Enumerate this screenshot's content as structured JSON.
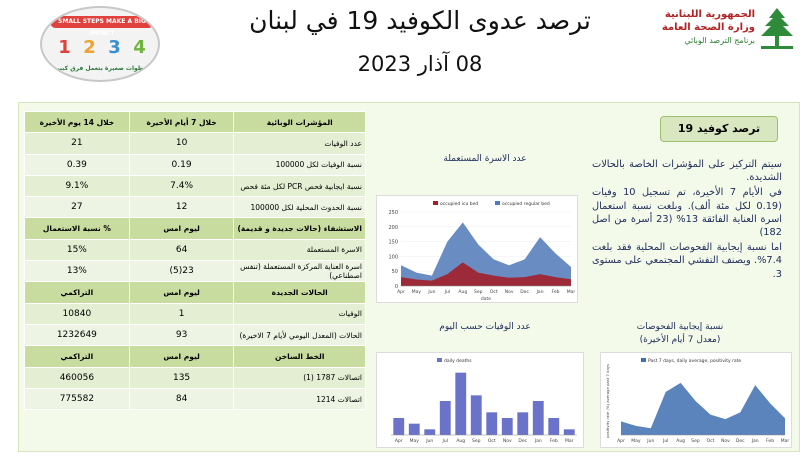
{
  "header": {
    "title": "ترصد عدوى الكوفيد 19 في لبنان",
    "date": "08 آذار 2023",
    "badge": {
      "top": "SMALL STEPS MAKE A BIG IMPACT",
      "numbers": [
        "1",
        "2",
        "3",
        "4"
      ],
      "bottom": "خطوات صغيرة بتعمل فرق كبير"
    },
    "ministry": {
      "line1": "الجمهورية اللبنانية",
      "line2": "وزارة الصحة العامة",
      "line3": "برنامج الترصد الوبائي"
    }
  },
  "table": {
    "header": [
      "المؤشرات الوبائية",
      "خلال 7 أيام الأخيرة",
      "خلال 14 يوم الأخيرة"
    ],
    "indicators": [
      {
        "label": "عدد الوفيات",
        "v7": "10",
        "v14": "21"
      },
      {
        "label": "نسبة الوفيات لكل 100000",
        "v7": "0.19",
        "v14": "0.39"
      },
      {
        "label": "نسبة ايجابية فحص PCR لكل مئة فحص",
        "v7": "7.4%",
        "v14": "9.1%"
      },
      {
        "label": "نسبة الحدوث المحلية لكل 100000",
        "v7": "12",
        "v14": "27"
      }
    ],
    "hosp_header": [
      "الاستشفاء (حالات جديدة و قديمة)",
      "ليوم امس",
      "% نسبة الاستعمال"
    ],
    "hosp": [
      {
        "label": "الاسرة المستعملة",
        "today": "64",
        "pct": "15%"
      },
      {
        "label": "اسرة العناية المركزة المستعملة (تنفس اصطناعي)",
        "today": "23(5)",
        "pct": "13%"
      }
    ],
    "new_header": [
      "الحالات الجديدة",
      "ليوم امس",
      "التراكمي"
    ],
    "new_cases": [
      {
        "label": "الوفيات",
        "today": "1",
        "cum": "10840"
      },
      {
        "label": "الحالات (المعدل اليومي لأيام 7 الاخيرة)",
        "today": "93",
        "cum": "1232649"
      }
    ],
    "hotline_header": [
      "الخط الساخن",
      "ليوم امس",
      "التراكمي"
    ],
    "hotline": [
      {
        "label": "اتصالات 1787 (1)",
        "today": "135",
        "cum": "460056"
      },
      {
        "label": "اتصالات 1214",
        "today": "84",
        "cum": "775582"
      }
    ]
  },
  "covid": {
    "heading": "ترصد كوفيد 19",
    "paragraphs": [
      "سيتم التركيز على المؤشرات الخاصة بالحالات الشديدة.",
      "في الأيام 7 الأخيرة، تم تسجيل 10 وفيات (0.19 لكل مئة ألف). وبلغت نسبة استعمال اسرة العناية الفائقة 13% (23 أسرة من اصل 182)",
      "اما نسبة إيجابية الفحوصات المحلية فقد بلغت 7.4%. ويصنف التفشي المجتمعي على مستوى 3."
    ]
  },
  "charts": {
    "beds": {
      "title": "عدد الاسرة المستعملة",
      "legend": [
        "occupied icu bed",
        "occupied regular bed"
      ],
      "xlabel": "date",
      "months": [
        "Apr",
        "May",
        "Jun",
        "Jul",
        "Aug",
        "Sep",
        "Oct",
        "Nov",
        "Dec",
        "Jan",
        "Feb",
        "Mar"
      ],
      "yticks": [
        "250",
        "200",
        "150",
        "100",
        "50",
        "0"
      ],
      "colors": {
        "icu": "#a31f2a",
        "regular": "#4f79b8"
      }
    },
    "deaths": {
      "title": "عدد الوفيات حسب اليوم",
      "legend": [
        "daily deaths"
      ],
      "color": "#6b72c9"
    },
    "positivity": {
      "title": "نسبة إيجابية الفحوصات",
      "subtitle": "(معدل 7 أيام الأخيرة)",
      "legend": [
        "Past 7 days, daily average, positivity rate"
      ],
      "ylabel": "positivity rate (%) average past 7 days",
      "color": "#3f6fb0"
    }
  },
  "chart_data": [
    {
      "type": "area",
      "title": "عدد الاسرة المستعملة",
      "x": [
        "Apr",
        "May",
        "Jun",
        "Jul",
        "Aug",
        "Sep",
        "Oct",
        "Nov",
        "Dec",
        "Jan",
        "Feb",
        "Mar"
      ],
      "series": [
        {
          "name": "occupied icu bed",
          "values": [
            30,
            22,
            18,
            40,
            80,
            45,
            35,
            28,
            30,
            40,
            30,
            23
          ]
        },
        {
          "name": "occupied regular bed",
          "values": [
            70,
            45,
            35,
            150,
            215,
            140,
            90,
            70,
            90,
            165,
            110,
            64
          ]
        }
      ],
      "ylim": [
        0,
        250
      ]
    },
    {
      "type": "bar",
      "title": "عدد الوفيات حسب اليوم",
      "x": [
        "Apr",
        "May",
        "Jun",
        "Jul",
        "Aug",
        "Sep",
        "Oct",
        "Nov",
        "Dec",
        "Jan",
        "Feb",
        "Mar"
      ],
      "series": [
        {
          "name": "daily deaths",
          "values": [
            3,
            2,
            1,
            6,
            11,
            7,
            4,
            3,
            4,
            6,
            3,
            1
          ]
        }
      ]
    },
    {
      "type": "area",
      "title": "نسبة إيجابية الفحوصات",
      "x": [
        "Apr",
        "May",
        "Jun",
        "Jul",
        "Aug",
        "Sep",
        "Oct",
        "Nov",
        "Dec",
        "Jan",
        "Feb",
        "Mar"
      ],
      "series": [
        {
          "name": "Past 7 days, daily average, positivity rate",
          "values": [
            6,
            4,
            3,
            19,
            23,
            15,
            9,
            7,
            10,
            22,
            14,
            7.4
          ]
        }
      ],
      "ylim": [
        0,
        30
      ]
    }
  ]
}
